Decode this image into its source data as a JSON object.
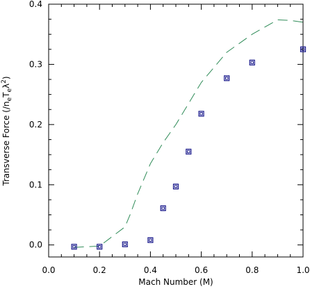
{
  "chart_data": {
    "type": "scatter",
    "title": "",
    "xlabel": "Mach Number (M)",
    "ylabel": {
      "prefix": "Transverse Force (/n",
      "sub1": "e",
      "mid": "T",
      "sub2": "e",
      "lambda": "λ",
      "sup": "2",
      "suffix": ")"
    },
    "xlim": [
      0.0,
      1.0
    ],
    "ylim": [
      -0.02,
      0.4
    ],
    "x_ticks": [
      0.0,
      0.2,
      0.4,
      0.6,
      0.8,
      1.0
    ],
    "x_tick_labels": [
      "0.0",
      "0.2",
      "0.4",
      "0.6",
      "0.8",
      "1.0"
    ],
    "y_ticks": [
      0.0,
      0.1,
      0.2,
      0.3,
      0.4
    ],
    "y_tick_labels": [
      "0.0",
      "0.1",
      "0.2",
      "0.3",
      "0.4"
    ],
    "grid": false,
    "series": [
      {
        "style": "markers",
        "marker": "double-square",
        "color": "#1a1a8c",
        "x": [
          0.1,
          0.2,
          0.3,
          0.4,
          0.45,
          0.5,
          0.55,
          0.6,
          0.7,
          0.8,
          1.0
        ],
        "y": [
          -0.003,
          -0.003,
          0.001,
          0.008,
          0.061,
          0.097,
          0.155,
          0.218,
          0.277,
          0.303,
          0.325
        ]
      },
      {
        "style": "dashed-line",
        "color": "#2e8b57",
        "x": [
          0.1,
          0.2,
          0.3,
          0.32,
          0.35,
          0.4,
          0.45,
          0.5,
          0.55,
          0.6,
          0.65,
          0.7,
          0.75,
          0.8,
          0.85,
          0.9,
          0.95,
          1.0
        ],
        "y": [
          -0.004,
          -0.002,
          0.03,
          0.05,
          0.085,
          0.135,
          0.17,
          0.2,
          0.235,
          0.27,
          0.295,
          0.32,
          0.335,
          0.35,
          0.362,
          0.374,
          0.373,
          0.37
        ]
      }
    ]
  }
}
